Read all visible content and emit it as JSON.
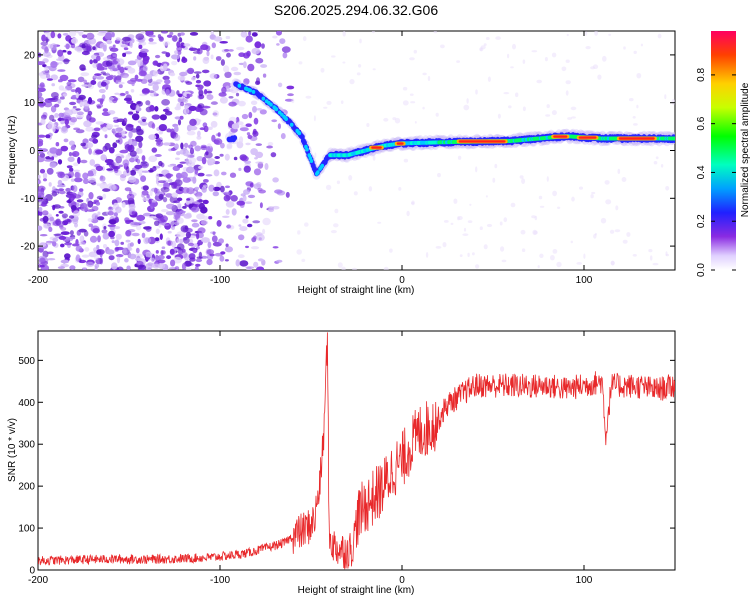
{
  "title": "S206.2025.294.06.32.G06",
  "chart_data": [
    {
      "type": "heatmap",
      "xlabel": "Height of straight line (km)",
      "ylabel": "Frequency (Hz)",
      "xlim": [
        -200,
        150
      ],
      "ylim": [
        -25,
        25
      ],
      "xticks": [
        -200,
        -100,
        0,
        100
      ],
      "yticks": [
        -20,
        -10,
        0,
        10,
        20
      ],
      "colorbar": {
        "label": "Normalized spectral amplitude",
        "range": [
          0,
          0.98
        ],
        "ticks": [
          0.0,
          0.2,
          0.4,
          0.6,
          0.8
        ]
      },
      "ridge": {
        "description_points": [
          {
            "x": -92,
            "y": 14
          },
          {
            "x": -80,
            "y": 12
          },
          {
            "x": -70,
            "y": 9
          },
          {
            "x": -62,
            "y": 6
          },
          {
            "x": -55,
            "y": 3
          },
          {
            "x": -50,
            "y": -2
          },
          {
            "x": -47,
            "y": -5
          },
          {
            "x": -40,
            "y": -1
          },
          {
            "x": -30,
            "y": -1
          },
          {
            "x": -10,
            "y": 1
          },
          {
            "x": 0,
            "y": 1.5
          },
          {
            "x": 30,
            "y": 1.8
          },
          {
            "x": 60,
            "y": 2
          },
          {
            "x": 90,
            "y": 3
          },
          {
            "x": 110,
            "y": 2.5
          },
          {
            "x": 150,
            "y": 2.5
          }
        ]
      }
    },
    {
      "type": "line",
      "xlabel": "Height of straight line (km)",
      "ylabel": "SNR (10 * v/v)",
      "xlim": [
        -200,
        150
      ],
      "ylim": [
        0,
        570
      ],
      "xticks": [
        -200,
        -100,
        0,
        100
      ],
      "yticks": [
        0,
        100,
        200,
        300,
        400,
        500
      ],
      "series": [
        {
          "name": "SNR",
          "color": "#e8282a",
          "x": [
            -200,
            -180,
            -160,
            -140,
            -120,
            -105,
            -95,
            -85,
            -75,
            -65,
            -58,
            -52,
            -48,
            -45,
            -43,
            -41,
            -40,
            -38,
            -35,
            -30,
            -27,
            -25,
            -20,
            -15,
            -10,
            -5,
            0,
            5,
            10,
            15,
            20,
            25,
            30,
            35,
            40,
            50,
            60,
            70,
            80,
            90,
            100,
            110,
            112,
            115,
            120,
            130,
            140,
            150
          ],
          "values": [
            20,
            22,
            24,
            23,
            25,
            28,
            32,
            38,
            50,
            62,
            85,
            100,
            120,
            210,
            320,
            560,
            80,
            60,
            50,
            45,
            55,
            120,
            155,
            175,
            200,
            240,
            260,
            300,
            330,
            340,
            360,
            395,
            410,
            425,
            440,
            440,
            440,
            438,
            440,
            432,
            440,
            450,
            320,
            440,
            440,
            438,
            430,
            440
          ]
        }
      ]
    }
  ]
}
